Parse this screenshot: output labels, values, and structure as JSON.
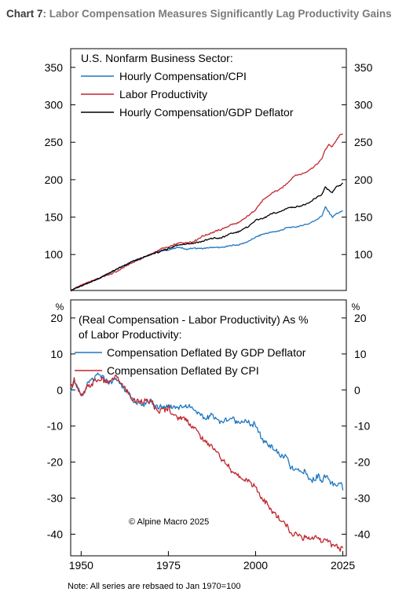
{
  "title": {
    "prefix": "Chart",
    "number": "7",
    "text": ": Labor Compensation Measures Significantly Lag Productivity Gains"
  },
  "note": "Note: All series are rebsaed to Jan 1970=100",
  "colors": {
    "blue": "#1f77c0",
    "red": "#c0272d",
    "black": "#000000"
  },
  "chart_data": [
    {
      "type": "line",
      "title": "U.S. Nonfarm Business Sector:",
      "xlim": [
        1947,
        2026
      ],
      "ylim": [
        52,
        375
      ],
      "yticks": [
        100,
        150,
        200,
        250,
        300,
        350
      ],
      "ytick_labels": [
        "100",
        "150",
        "200",
        "250",
        "300",
        "350"
      ],
      "legend": "top-left",
      "series": [
        {
          "name": "Hourly Compensation/CPI",
          "color": "#1f77c0",
          "points": [
            [
              1947,
              52
            ],
            [
              1950,
              58
            ],
            [
              1955,
              68
            ],
            [
              1960,
              80
            ],
            [
              1965,
              92
            ],
            [
              1970,
              100
            ],
            [
              1972,
              104
            ],
            [
              1975,
              106
            ],
            [
              1978,
              110
            ],
            [
              1980,
              107
            ],
            [
              1982,
              108
            ],
            [
              1985,
              108
            ],
            [
              1988,
              110
            ],
            [
              1990,
              109
            ],
            [
              1993,
              112
            ],
            [
              1995,
              113
            ],
            [
              1998,
              118
            ],
            [
              2000,
              123
            ],
            [
              2002,
              127
            ],
            [
              2005,
              130
            ],
            [
              2007,
              132
            ],
            [
              2009,
              136
            ],
            [
              2012,
              137
            ],
            [
              2015,
              141
            ],
            [
              2018,
              148
            ],
            [
              2019,
              152
            ],
            [
              2020,
              163
            ],
            [
              2021,
              157
            ],
            [
              2022,
              150
            ],
            [
              2023,
              154
            ],
            [
              2024,
              156
            ],
            [
              2025,
              159
            ]
          ]
        },
        {
          "name": "Labor Productivity",
          "color": "#c0272d",
          "points": [
            [
              1947,
              52
            ],
            [
              1950,
              59
            ],
            [
              1955,
              68
            ],
            [
              1960,
              77
            ],
            [
              1965,
              90
            ],
            [
              1970,
              100
            ],
            [
              1973,
              108
            ],
            [
              1975,
              110
            ],
            [
              1978,
              115
            ],
            [
              1980,
              116
            ],
            [
              1982,
              117
            ],
            [
              1985,
              125
            ],
            [
              1988,
              130
            ],
            [
              1990,
              133
            ],
            [
              1993,
              140
            ],
            [
              1995,
              142
            ],
            [
              1998,
              152
            ],
            [
              2000,
              160
            ],
            [
              2002,
              172
            ],
            [
              2005,
              183
            ],
            [
              2007,
              187
            ],
            [
              2009,
              195
            ],
            [
              2011,
              205
            ],
            [
              2013,
              207
            ],
            [
              2015,
              212
            ],
            [
              2018,
              222
            ],
            [
              2019,
              228
            ],
            [
              2020,
              240
            ],
            [
              2021,
              247
            ],
            [
              2022,
              244
            ],
            [
              2023,
              252
            ],
            [
              2024,
              258
            ],
            [
              2025,
              262
            ]
          ]
        },
        {
          "name": "Hourly Compensation/GDP Deflator",
          "color": "#000000",
          "points": [
            [
              1947,
              52
            ],
            [
              1950,
              58
            ],
            [
              1955,
              68
            ],
            [
              1960,
              80
            ],
            [
              1965,
              91
            ],
            [
              1970,
              100
            ],
            [
              1972,
              103
            ],
            [
              1975,
              108
            ],
            [
              1978,
              113
            ],
            [
              1980,
              114
            ],
            [
              1982,
              115
            ],
            [
              1985,
              118
            ],
            [
              1988,
              122
            ],
            [
              1990,
              122
            ],
            [
              1993,
              128
            ],
            [
              1995,
              130
            ],
            [
              1998,
              138
            ],
            [
              2000,
              146
            ],
            [
              2002,
              148
            ],
            [
              2005,
              155
            ],
            [
              2007,
              157
            ],
            [
              2009,
              162
            ],
            [
              2012,
              164
            ],
            [
              2015,
              168
            ],
            [
              2018,
              178
            ],
            [
              2019,
              180
            ],
            [
              2020,
              190
            ],
            [
              2021,
              186
            ],
            [
              2022,
              182
            ],
            [
              2023,
              190
            ],
            [
              2024,
              192
            ],
            [
              2025,
              195
            ]
          ]
        }
      ]
    },
    {
      "type": "line",
      "title": "(Real Compensation - Labor Productivity) As % of Labor Productivity:",
      "title_lines": [
        "(Real Compensation - Labor Productivity) As %",
        "of Labor Productivity:"
      ],
      "unit_label": "%",
      "annotation": "© Alpine Macro 2025",
      "xlim": [
        1947,
        2026
      ],
      "ylim": [
        -46,
        25
      ],
      "yticks": [
        -40,
        -30,
        -20,
        -10,
        0,
        10,
        20
      ],
      "ytick_labels": [
        "-40",
        "-30",
        "-20",
        "-10",
        "0",
        "10",
        "20"
      ],
      "xticks": [
        1950,
        1975,
        2000,
        2025
      ],
      "xtick_labels": [
        "1950",
        "1975",
        "2000",
        "2025"
      ],
      "legend": "top-left",
      "series": [
        {
          "name": "Compensation Deflated By GDP Deflator",
          "color": "#1f77c0",
          "points": [
            [
              1947,
              0
            ],
            [
              1948,
              3
            ],
            [
              1950,
              -2
            ],
            [
              1952,
              2
            ],
            [
              1955,
              4
            ],
            [
              1958,
              2
            ],
            [
              1960,
              3
            ],
            [
              1962,
              1
            ],
            [
              1965,
              -3
            ],
            [
              1968,
              -4
            ],
            [
              1970,
              -3
            ],
            [
              1972,
              -5
            ],
            [
              1975,
              -4
            ],
            [
              1978,
              -5
            ],
            [
              1980,
              -4
            ],
            [
              1982,
              -5
            ],
            [
              1985,
              -8
            ],
            [
              1988,
              -7
            ],
            [
              1990,
              -9
            ],
            [
              1993,
              -8
            ],
            [
              1995,
              -9
            ],
            [
              1998,
              -9
            ],
            [
              2000,
              -10
            ],
            [
              2002,
              -14
            ],
            [
              2005,
              -16
            ],
            [
              2007,
              -18
            ],
            [
              2009,
              -19
            ],
            [
              2010,
              -22
            ],
            [
              2012,
              -22
            ],
            [
              2014,
              -23
            ],
            [
              2016,
              -25
            ],
            [
              2018,
              -24
            ],
            [
              2019,
              -25
            ],
            [
              2020,
              -24
            ],
            [
              2021,
              -25
            ],
            [
              2022,
              -26
            ],
            [
              2023,
              -27
            ],
            [
              2024,
              -26
            ],
            [
              2025,
              -27
            ]
          ]
        },
        {
          "name": "Compensation Deflated By CPI",
          "color": "#c0272d",
          "points": [
            [
              1947,
              0
            ],
            [
              1948,
              3
            ],
            [
              1950,
              -2
            ],
            [
              1952,
              1
            ],
            [
              1955,
              3
            ],
            [
              1958,
              2
            ],
            [
              1960,
              4
            ],
            [
              1962,
              1
            ],
            [
              1965,
              -3
            ],
            [
              1968,
              -3
            ],
            [
              1970,
              -3
            ],
            [
              1972,
              -6
            ],
            [
              1975,
              -5
            ],
            [
              1978,
              -8
            ],
            [
              1980,
              -8
            ],
            [
              1982,
              -10
            ],
            [
              1985,
              -14
            ],
            [
              1988,
              -16
            ],
            [
              1990,
              -19
            ],
            [
              1993,
              -22
            ],
            [
              1995,
              -24
            ],
            [
              1998,
              -25
            ],
            [
              2000,
              -27
            ],
            [
              2002,
              -30
            ],
            [
              2005,
              -34
            ],
            [
              2007,
              -36
            ],
            [
              2009,
              -38
            ],
            [
              2010,
              -40
            ],
            [
              2012,
              -40
            ],
            [
              2014,
              -41
            ],
            [
              2016,
              -41
            ],
            [
              2018,
              -41
            ],
            [
              2019,
              -42
            ],
            [
              2020,
              -41
            ],
            [
              2021,
              -42
            ],
            [
              2022,
              -43
            ],
            [
              2023,
              -43
            ],
            [
              2024,
              -44
            ],
            [
              2025,
              -44
            ]
          ]
        }
      ]
    }
  ]
}
